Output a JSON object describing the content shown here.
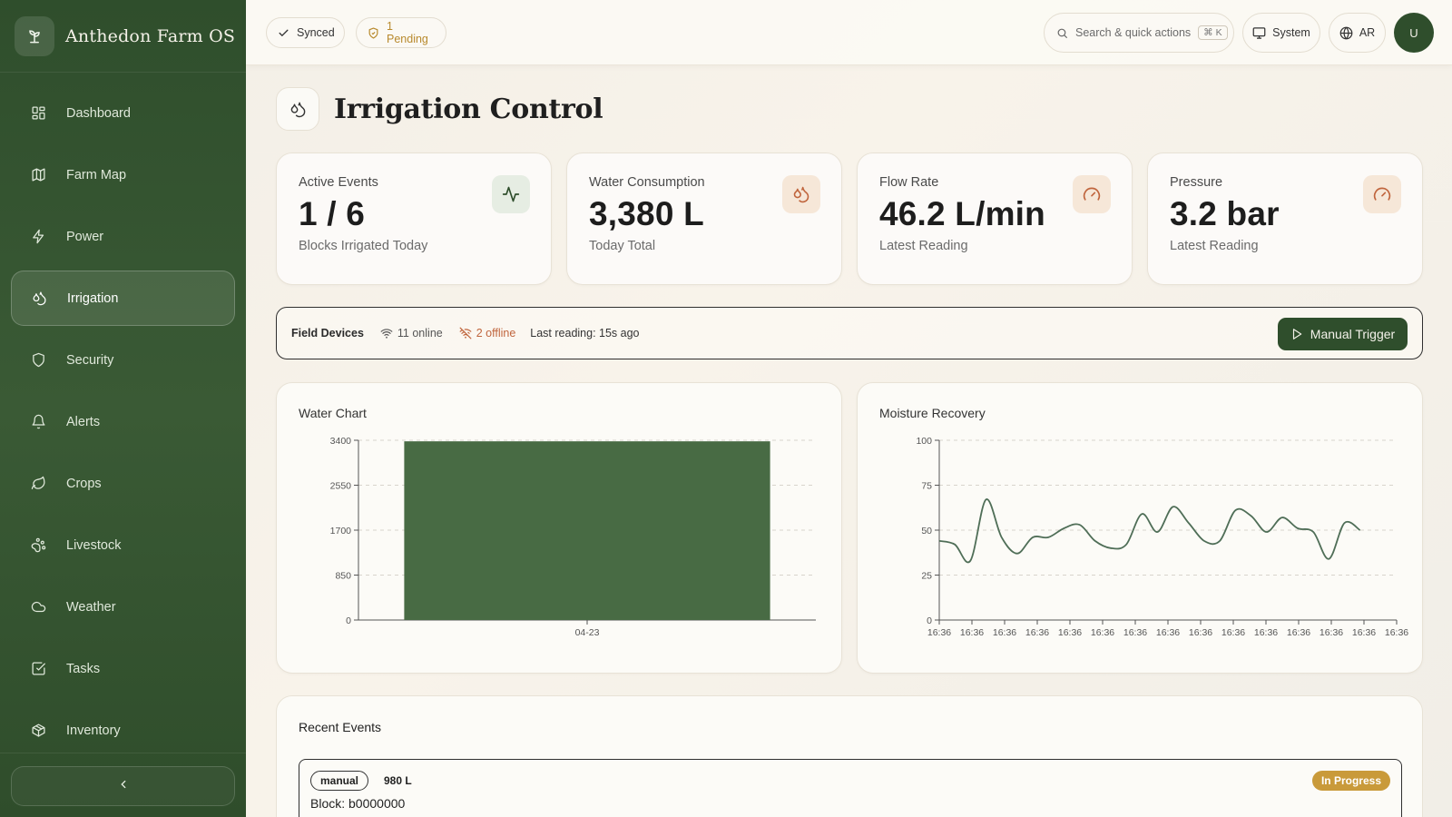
{
  "app": {
    "title": "Anthedon Farm OS"
  },
  "sidebar": {
    "items": [
      {
        "label": "Dashboard",
        "icon": "dashboard-icon"
      },
      {
        "label": "Farm Map",
        "icon": "map-icon"
      },
      {
        "label": "Power",
        "icon": "bolt-icon"
      },
      {
        "label": "Irrigation",
        "icon": "droplets-icon",
        "active": true
      },
      {
        "label": "Security",
        "icon": "shield-icon"
      },
      {
        "label": "Alerts",
        "icon": "bell-icon"
      },
      {
        "label": "Crops",
        "icon": "leaf-icon"
      },
      {
        "label": "Livestock",
        "icon": "paw-icon"
      },
      {
        "label": "Weather",
        "icon": "cloud-icon"
      },
      {
        "label": "Tasks",
        "icon": "checkbox-icon"
      },
      {
        "label": "Inventory",
        "icon": "package-icon"
      }
    ]
  },
  "topbar": {
    "synced": "Synced",
    "pending": "1 Pending",
    "search_placeholder": "Search & quick actions",
    "search_shortcut": "⌘ K",
    "theme": "System",
    "language": "AR",
    "avatar": "U"
  },
  "page": {
    "title": "Irrigation Control"
  },
  "stats": [
    {
      "label": "Active Events",
      "value": "1 / 6",
      "sub": "Blocks Irrigated Today",
      "icon": "activity-icon"
    },
    {
      "label": "Water Consumption",
      "value": "3,380 L",
      "sub": "Today Total",
      "icon": "droplets-icon"
    },
    {
      "label": "Flow Rate",
      "value": "46.2 L/min",
      "sub": "Latest Reading",
      "icon": "gauge-icon"
    },
    {
      "label": "Pressure",
      "value": "3.2 bar",
      "sub": "Latest Reading",
      "icon": "gauge-icon"
    }
  ],
  "devices": {
    "title": "Field Devices",
    "online": "11 online",
    "offline": "2 offline",
    "last_reading": "Last reading: 15s ago",
    "trigger": "Manual Trigger"
  },
  "colors": {
    "primary": "#2f4e2c",
    "accent_orange": "#c0653d",
    "warning": "#c99a3a",
    "bar": "#486b44",
    "line": "#4f6e57"
  },
  "chart_data": [
    {
      "type": "bar",
      "title": "Water Chart",
      "categories": [
        "04-23"
      ],
      "values": [
        3380
      ],
      "yticks": [
        0,
        850,
        1700,
        2550,
        3400
      ],
      "ylim": [
        0,
        3400
      ],
      "grid": true
    },
    {
      "type": "line",
      "title": "Moisture Recovery",
      "x_tick_labels": [
        "16:36",
        "16:36",
        "16:36",
        "16:36",
        "16:36",
        "16:36",
        "16:36",
        "16:36",
        "16:36",
        "16:36",
        "16:36",
        "16:36",
        "16:36",
        "16:36",
        "16:36"
      ],
      "yticks": [
        0,
        25,
        50,
        75,
        100
      ],
      "ylim": [
        0,
        100
      ],
      "grid": true,
      "series": [
        {
          "values": [
            44,
            42,
            33,
            67,
            46,
            37,
            46,
            46,
            51,
            53,
            44,
            40,
            42,
            59,
            49,
            63,
            54,
            44,
            44,
            61,
            58,
            49,
            57,
            51,
            49,
            34,
            54,
            50
          ]
        }
      ]
    }
  ],
  "events": {
    "title": "Recent Events",
    "items": [
      {
        "type": "manual",
        "volume": "980 L",
        "block": "Block: b0000000",
        "status": "In Progress"
      }
    ]
  }
}
